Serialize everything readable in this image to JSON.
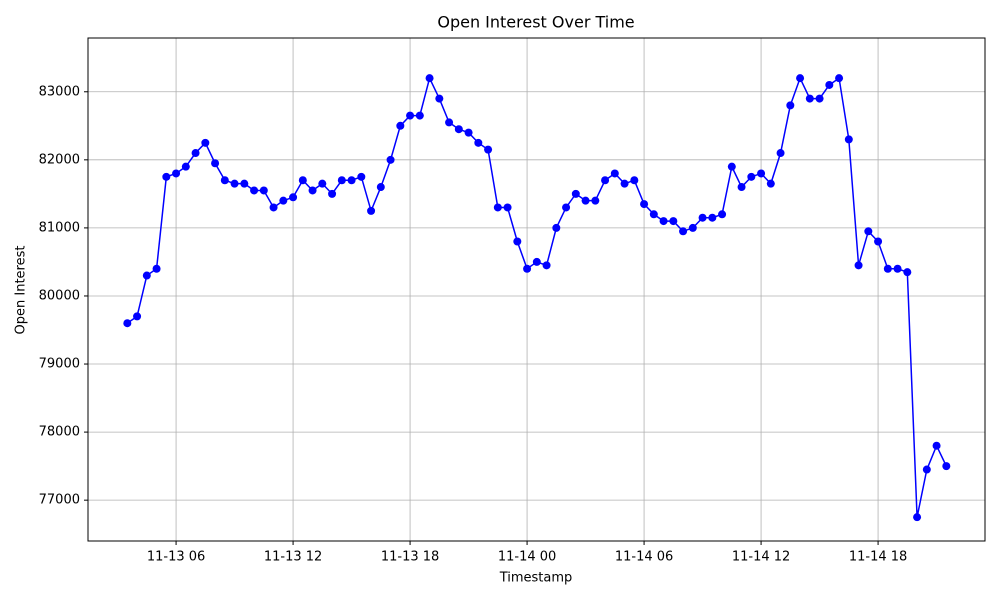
{
  "chart_data": {
    "type": "line",
    "title": "Open Interest Over Time",
    "x_label": "Timestamp",
    "y_label": "Open Interest",
    "color": "#0000ff",
    "grid": true,
    "x": [
      "11-13 03:30",
      "11-13 04:00",
      "11-13 04:30",
      "11-13 05:00",
      "11-13 05:30",
      "11-13 06:00",
      "11-13 06:30",
      "11-13 07:00",
      "11-13 07:30",
      "11-13 08:00",
      "11-13 08:30",
      "11-13 09:00",
      "11-13 09:30",
      "11-13 10:00",
      "11-13 10:30",
      "11-13 11:00",
      "11-13 11:30",
      "11-13 12:00",
      "11-13 12:30",
      "11-13 13:00",
      "11-13 13:30",
      "11-13 14:00",
      "11-13 14:30",
      "11-13 15:00",
      "11-13 15:30",
      "11-13 16:00",
      "11-13 16:30",
      "11-13 17:00",
      "11-13 17:30",
      "11-13 18:00",
      "11-13 18:30",
      "11-13 19:00",
      "11-13 19:30",
      "11-13 20:00",
      "11-13 20:30",
      "11-13 21:00",
      "11-13 21:30",
      "11-13 22:00",
      "11-13 22:30",
      "11-13 23:00",
      "11-13 23:30",
      "11-14 00:00",
      "11-14 00:30",
      "11-14 01:00",
      "11-14 01:30",
      "11-14 02:00",
      "11-14 02:30",
      "11-14 03:00",
      "11-14 03:30",
      "11-14 04:00",
      "11-14 04:30",
      "11-14 05:00",
      "11-14 05:30",
      "11-14 06:00",
      "11-14 06:30",
      "11-14 07:00",
      "11-14 07:30",
      "11-14 08:00",
      "11-14 08:30",
      "11-14 09:00",
      "11-14 09:30",
      "11-14 10:00",
      "11-14 10:30",
      "11-14 11:00",
      "11-14 11:30",
      "11-14 12:00",
      "11-14 12:30",
      "11-14 13:00",
      "11-14 13:30",
      "11-14 14:00",
      "11-14 14:30",
      "11-14 15:00",
      "11-14 15:30",
      "11-14 16:00",
      "11-14 16:30",
      "11-14 17:00",
      "11-14 17:30",
      "11-14 18:00",
      "11-14 18:30",
      "11-14 19:00",
      "11-14 19:30",
      "11-14 20:00",
      "11-14 20:30",
      "11-14 21:00",
      "11-14 21:30"
    ],
    "values": [
      79600,
      79700,
      80300,
      80400,
      81750,
      81800,
      81900,
      82100,
      82250,
      81950,
      81700,
      81650,
      81650,
      81550,
      81550,
      81300,
      81400,
      81450,
      81700,
      81550,
      81650,
      81500,
      81700,
      81700,
      81750,
      81250,
      81600,
      82000,
      82500,
      82650,
      82650,
      83200,
      82900,
      82550,
      82450,
      82400,
      82250,
      82150,
      81300,
      81300,
      80800,
      80400,
      80500,
      80450,
      81000,
      81300,
      81500,
      81400,
      81400,
      81700,
      81800,
      81650,
      81700,
      81350,
      81200,
      81100,
      81100,
      80950,
      81000,
      81150,
      81150,
      81200,
      81900,
      81600,
      81750,
      81800,
      81650,
      82100,
      82800,
      83200,
      82900,
      82900,
      83100,
      83200,
      82300,
      80450,
      80950,
      80800,
      80400,
      80400,
      80350,
      76750,
      77450,
      77800,
      77500
    ],
    "xlim": [
      "11-13 01:29",
      "11-14 23:29"
    ],
    "xticks": [
      {
        "value": "11-13 06:00",
        "label": "11-13 06"
      },
      {
        "value": "11-13 12:00",
        "label": "11-13 12"
      },
      {
        "value": "11-13 18:00",
        "label": "11-13 18"
      },
      {
        "value": "11-14 00:00",
        "label": "11-14 00"
      },
      {
        "value": "11-14 06:00",
        "label": "11-14 06"
      },
      {
        "value": "11-14 12:00",
        "label": "11-14 12"
      },
      {
        "value": "11-14 18:00",
        "label": "11-14 18"
      }
    ],
    "ylim": [
      76400,
      83790
    ],
    "yticks": [
      77000,
      78000,
      79000,
      80000,
      81000,
      82000,
      83000
    ]
  }
}
